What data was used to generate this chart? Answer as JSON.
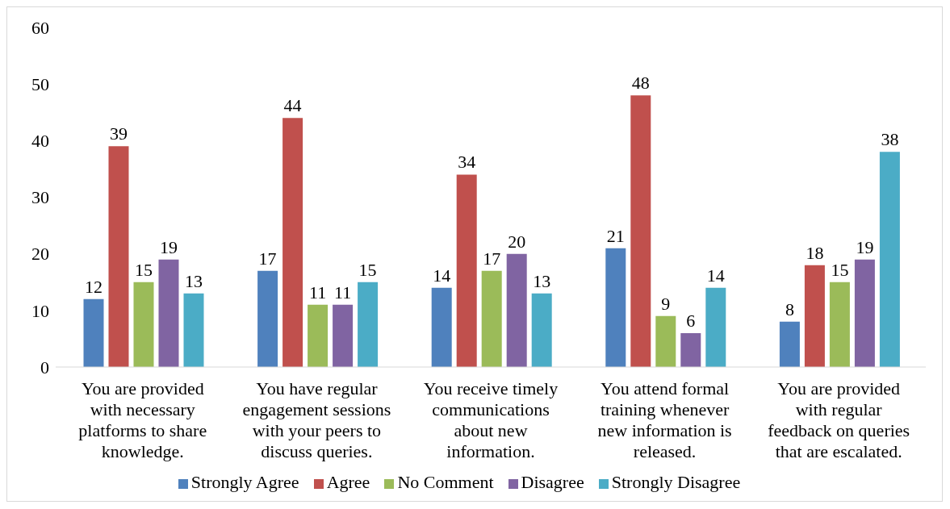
{
  "chart_data": {
    "type": "bar",
    "categories": [
      "You are provided with necessary platforms to share knowledge.",
      "You have regular engagement sessions with your peers to discuss queries.",
      "You receive timely communications about new information.",
      "You attend formal training whenever new information is released.",
      "You are provided with regular feedback on queries that are escalated."
    ],
    "series": [
      {
        "name": "Strongly Agree",
        "color": "#4f81bd",
        "values": [
          12,
          17,
          14,
          21,
          8
        ]
      },
      {
        "name": "Agree",
        "color": "#c0504d",
        "values": [
          39,
          44,
          34,
          48,
          18
        ]
      },
      {
        "name": "No Comment",
        "color": "#9bbb59",
        "values": [
          15,
          11,
          17,
          9,
          15
        ]
      },
      {
        "name": "Disagree",
        "color": "#8064a2",
        "values": [
          19,
          11,
          20,
          6,
          19
        ]
      },
      {
        "name": "Strongly Disagree",
        "color": "#4bacc6",
        "values": [
          13,
          15,
          13,
          14,
          38
        ]
      }
    ],
    "ylim": [
      0,
      60
    ],
    "yticks": [
      0,
      10,
      20,
      30,
      40,
      50,
      60
    ],
    "grid": false,
    "legend": "bottom",
    "data_labels": true
  }
}
